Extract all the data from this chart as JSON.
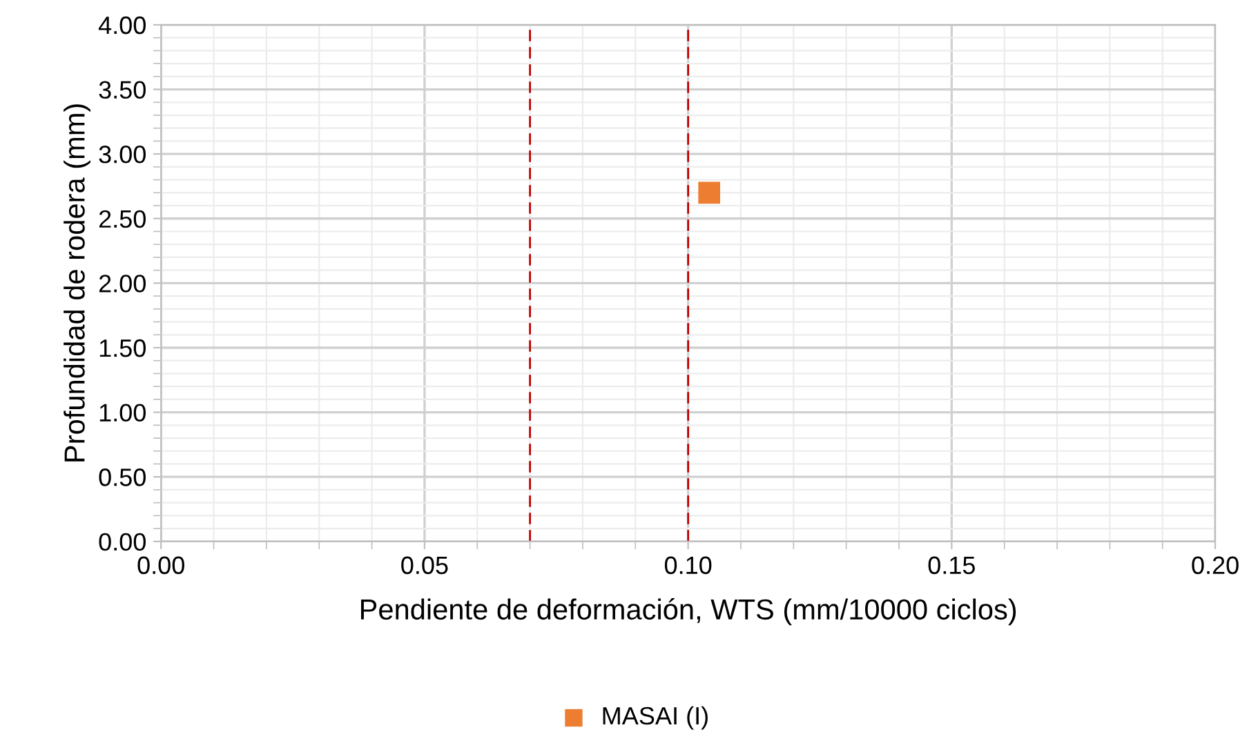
{
  "chart_data": {
    "type": "scatter",
    "xlabel": "Pendiente de deformación, WTS (mm/10000 ciclos)",
    "ylabel": "Profundidad de rodera (mm)",
    "series": [
      {
        "name": "MASAI (I)",
        "color": "#ed7d31",
        "x": [
          0.104
        ],
        "values": [
          2.7
        ]
      }
    ],
    "xlim": [
      0,
      0.2
    ],
    "xticks": [
      {
        "value": 0,
        "label": "0.00"
      },
      {
        "value": 0.05,
        "label": "0.05"
      },
      {
        "value": 0.1,
        "label": "0.10"
      },
      {
        "value": 0.15,
        "label": "0.15"
      },
      {
        "value": 0.2,
        "label": "0.20"
      }
    ],
    "ylim": [
      0,
      4
    ],
    "yticks": [
      {
        "value": 0,
        "label": "0.00"
      },
      {
        "value": 0.5,
        "label": "0.50"
      },
      {
        "value": 1,
        "label": "1.00"
      },
      {
        "value": 1.5,
        "label": "1.50"
      },
      {
        "value": 2,
        "label": "2.00"
      },
      {
        "value": 2.5,
        "label": "2.50"
      },
      {
        "value": 3,
        "label": "3.00"
      },
      {
        "value": 3.5,
        "label": "3.50"
      },
      {
        "value": 4,
        "label": "4.00"
      }
    ],
    "ref_lines": [
      {
        "axis": "x",
        "value": 0.07,
        "color": "#c00000",
        "line_style": "dashed"
      },
      {
        "axis": "x",
        "value": 0.1,
        "color": "#c00000",
        "line_style": "dashed"
      }
    ],
    "grid": true,
    "marker": "square",
    "legend": "bottom"
  }
}
